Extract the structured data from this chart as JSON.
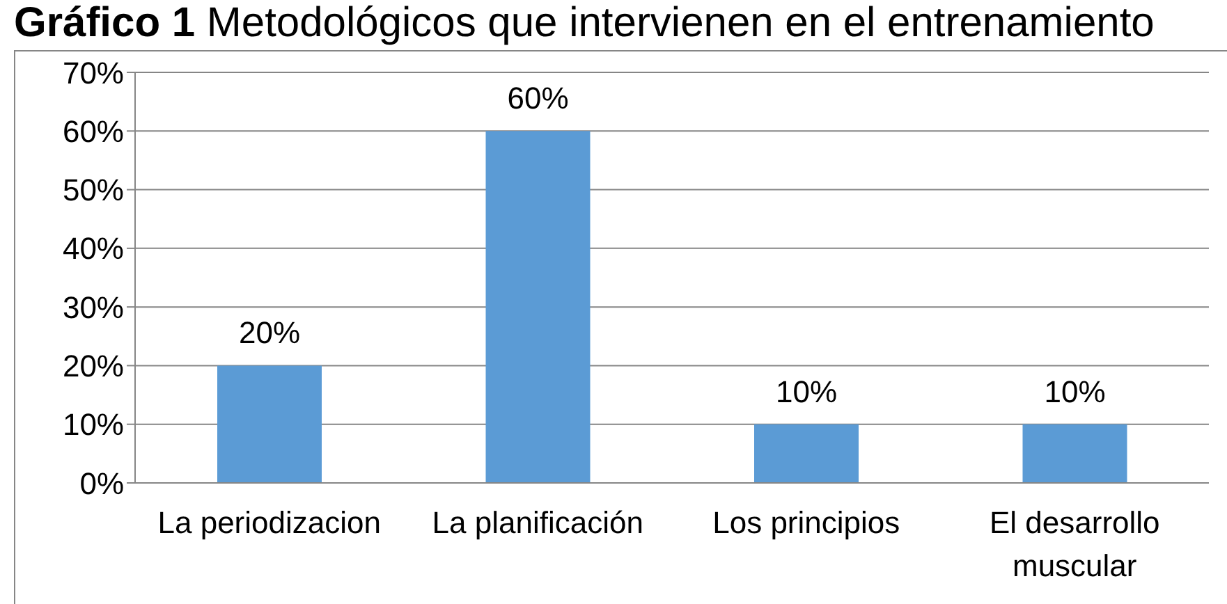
{
  "chart_data": {
    "type": "bar",
    "title": "Gráfico 1 Metodológicos que intervienen en el entrenamiento",
    "categories": [
      "La periodizacion",
      "La planificación",
      "Los principios",
      "El desarrollo muscular"
    ],
    "values": [
      20,
      60,
      10,
      10
    ],
    "value_labels": [
      "20%",
      "60%",
      "10%",
      "10%"
    ],
    "color": "#5b9bd5",
    "ylim": [
      0,
      70
    ],
    "yticks": [
      {
        "value": 0,
        "label": "0%"
      },
      {
        "value": 10,
        "label": "10%"
      },
      {
        "value": 20,
        "label": "20%"
      },
      {
        "value": 30,
        "label": "30%"
      },
      {
        "value": 40,
        "label": "40%"
      },
      {
        "value": 50,
        "label": "50%"
      },
      {
        "value": 60,
        "label": "60%"
      },
      {
        "value": 70,
        "label": "70%"
      }
    ],
    "grid": "y"
  }
}
